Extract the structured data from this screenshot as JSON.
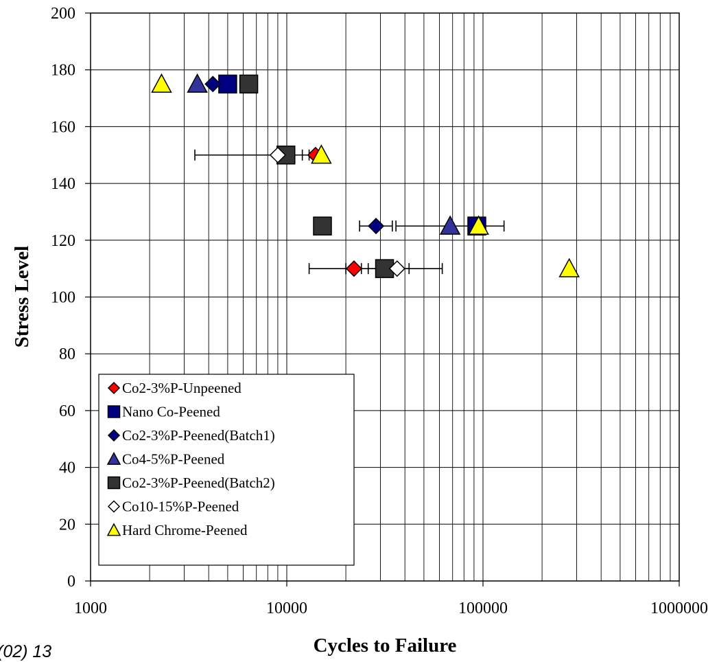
{
  "footer_text": "(02) 13",
  "chart_data": {
    "type": "scatter",
    "xlabel": "Cycles to Failure",
    "ylabel": "Stress Level",
    "x_scale": "log",
    "xlim": [
      1000,
      1000000
    ],
    "ylim": [
      0,
      200
    ],
    "x_ticks": [
      "1000",
      "10000",
      "100000",
      "1000000"
    ],
    "y_ticks": [
      "0",
      "20",
      "40",
      "60",
      "80",
      "100",
      "120",
      "140",
      "160",
      "180",
      "200"
    ],
    "grid": true,
    "legend_position": "bottom-left",
    "series": [
      {
        "name": "Co2-3%P-Unpeened",
        "marker": "diamond",
        "color": "#ff0000",
        "points": [
          {
            "x": 14000,
            "y": 150
          },
          {
            "x": 22000,
            "y": 110,
            "xerr_low": 20000,
            "xerr_high": 24000
          }
        ]
      },
      {
        "name": "Nano Co-Peened",
        "marker": "square",
        "color": "#000080",
        "points": [
          {
            "x": 5000,
            "y": 175
          },
          {
            "x": 93000,
            "y": 125
          }
        ]
      },
      {
        "name": "Co2-3%P-Peened(Batch1)",
        "marker": "diamond",
        "color": "#000080",
        "points": [
          {
            "x": 4200,
            "y": 175
          },
          {
            "x": 28500,
            "y": 125,
            "xerr_low": 23500,
            "xerr_high": 34500
          }
        ]
      },
      {
        "name": "Co4-5%P-Peened",
        "marker": "triangle",
        "color": "#333399",
        "points": [
          {
            "x": 3500,
            "y": 175
          },
          {
            "x": 68000,
            "y": 125,
            "xerr_low": 36000,
            "xerr_high": 128000
          }
        ]
      },
      {
        "name": "Co2-3%P-Peened(Batch2)",
        "marker": "square",
        "color": "#333333",
        "points": [
          {
            "x": 6400,
            "y": 175
          },
          {
            "x": 9900,
            "y": 150,
            "xerr_low": 8800,
            "xerr_high": 12000
          },
          {
            "x": 15200,
            "y": 125,
            "xerr_low": 14500,
            "xerr_high": 16300
          },
          {
            "x": 31500,
            "y": 110,
            "xerr_low": 26000,
            "xerr_high": 42000
          }
        ]
      },
      {
        "name": "Co10-15%P-Peened",
        "marker": "diamond",
        "color": "#ffffff",
        "points": [
          {
            "x": 9000,
            "y": 150,
            "xerr_low": 3400,
            "xerr_high": 13000
          },
          {
            "x": 36500,
            "y": 110,
            "xerr_low": 13000,
            "xerr_high": 62000
          }
        ]
      },
      {
        "name": "Hard Chrome-Peened",
        "marker": "triangle",
        "color": "#ffff00",
        "points": [
          {
            "x": 2300,
            "y": 175
          },
          {
            "x": 15000,
            "y": 150
          },
          {
            "x": 95000,
            "y": 125
          },
          {
            "x": 275000,
            "y": 110
          }
        ]
      }
    ]
  }
}
